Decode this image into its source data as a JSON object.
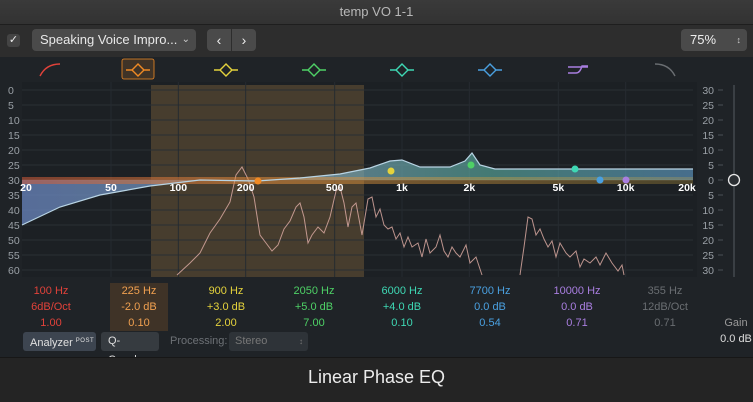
{
  "window": {
    "title": "temp VO 1-1"
  },
  "toolbar": {
    "preset": "Speaking Voice Impro...",
    "zoom": "75%",
    "chevron_down_glyph": "⌄",
    "prev_glyph": "‹",
    "next_glyph": "›",
    "check_glyph": "✓"
  },
  "graph": {
    "db_scale_left": [
      "0",
      "5",
      "10",
      "15",
      "20",
      "25",
      "30",
      "35",
      "40",
      "45",
      "50",
      "55",
      "60"
    ],
    "db_scale_right": [
      "30",
      "25",
      "20",
      "15",
      "10",
      "5",
      "0",
      "5",
      "10",
      "15",
      "20",
      "25",
      "30"
    ],
    "freq_labels": [
      "20",
      "50",
      "100",
      "200",
      "500",
      "1k",
      "2k",
      "5k",
      "10k",
      "20k"
    ]
  },
  "bands": [
    {
      "freq": "100 Hz",
      "gain": "6dB/Oct",
      "q": "1.00",
      "color": "#e0423a",
      "icon": "low-cut-icon"
    },
    {
      "freq": "225 Hz",
      "gain": "-2.0 dB",
      "q": "0.10",
      "color": "#f08a24",
      "icon": "bell-icon",
      "selected": true
    },
    {
      "freq": "900 Hz",
      "gain": "+3.0 dB",
      "q": "2.00",
      "color": "#e4d23c",
      "icon": "bell-icon"
    },
    {
      "freq": "2050 Hz",
      "gain": "+5.0 dB",
      "q": "7.00",
      "color": "#4ed166",
      "icon": "bell-icon"
    },
    {
      "freq": "6000 Hz",
      "gain": "+4.0 dB",
      "q": "0.10",
      "color": "#3ed8b4",
      "icon": "bell-icon"
    },
    {
      "freq": "7700 Hz",
      "gain": "0.0 dB",
      "q": "0.54",
      "color": "#4aa0e0",
      "icon": "bell-icon"
    },
    {
      "freq": "10000 Hz",
      "gain": "0.0 dB",
      "q": "0.71",
      "color": "#a97ee0",
      "icon": "high-shelf-icon"
    },
    {
      "freq": "355 Hz",
      "gain": "12dB/Oct",
      "q": "0.71",
      "color": "#6a6e72",
      "icon": "high-cut-icon",
      "dimmed": true
    }
  ],
  "output_gain": {
    "label": "Gain",
    "value": "0.0 dB"
  },
  "controls": {
    "analyzer_label": "Analyzer",
    "analyzer_badge": "POST",
    "qcouple_label": "Q-Couple",
    "processing_label": "Processing:",
    "processing_value": "Stereo",
    "select_glyph": "↕"
  },
  "footer": {
    "plugin_name": "Linear Phase EQ"
  }
}
